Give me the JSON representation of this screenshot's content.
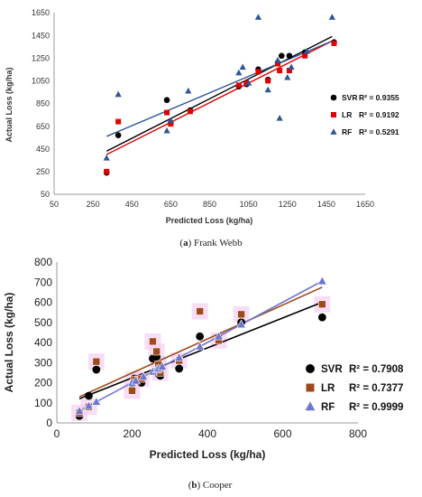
{
  "chart_data": [
    {
      "type": "scatter",
      "caption_letter": "a",
      "caption_text": "Frank Webb",
      "xlabel": "Predicted Loss (kg/ha)",
      "ylabel": "Actual Loss (kg/ha)",
      "xlim": [
        50,
        1650
      ],
      "ylim": [
        50,
        1650
      ],
      "xticks": [
        50,
        250,
        450,
        650,
        850,
        1050,
        1250,
        1450,
        1650
      ],
      "yticks": [
        50,
        250,
        450,
        650,
        850,
        1050,
        1250,
        1450,
        1650
      ],
      "grid": false,
      "legend_position": "right",
      "series": [
        {
          "name": "SVR",
          "r2": "R² = 0.9355",
          "marker": "circle",
          "color": "#000000",
          "points": [
            [
              320,
              240
            ],
            [
              380,
              570
            ],
            [
              630,
              880
            ],
            [
              650,
              680
            ],
            [
              750,
              790
            ],
            [
              1000,
              1000
            ],
            [
              1040,
              1020
            ],
            [
              1100,
              1150
            ],
            [
              1150,
              1060
            ],
            [
              1200,
              1210
            ],
            [
              1220,
              1270
            ],
            [
              1260,
              1270
            ],
            [
              1340,
              1300
            ],
            [
              1490,
              1390
            ]
          ],
          "trend": [
            [
              320,
              430
            ],
            [
              1480,
              1440
            ]
          ]
        },
        {
          "name": "LR",
          "r2": "R² = 0.9192",
          "marker": "square",
          "color": "#e00000",
          "points": [
            [
              320,
              250
            ],
            [
              380,
              690
            ],
            [
              630,
              770
            ],
            [
              650,
              670
            ],
            [
              750,
              780
            ],
            [
              1000,
              1010
            ],
            [
              1040,
              1030
            ],
            [
              1100,
              1130
            ],
            [
              1150,
              1050
            ],
            [
              1200,
              1200
            ],
            [
              1210,
              1140
            ],
            [
              1260,
              1140
            ],
            [
              1340,
              1270
            ],
            [
              1490,
              1380
            ]
          ],
          "trend": [
            [
              320,
              400
            ],
            [
              1480,
              1400
            ]
          ]
        },
        {
          "name": "RF",
          "r2": "R² = 0.5291",
          "marker": "triangle",
          "color": "#2e5597",
          "points": [
            [
              320,
              370
            ],
            [
              380,
              930
            ],
            [
              630,
              610
            ],
            [
              650,
              700
            ],
            [
              740,
              960
            ],
            [
              1000,
              1120
            ],
            [
              1020,
              1170
            ],
            [
              1050,
              1030
            ],
            [
              1100,
              1610
            ],
            [
              1150,
              970
            ],
            [
              1200,
              1230
            ],
            [
              1210,
              720
            ],
            [
              1250,
              1080
            ],
            [
              1270,
              1170
            ],
            [
              1350,
              1310
            ],
            [
              1480,
              1610
            ]
          ],
          "trend": [
            [
              320,
              560
            ],
            [
              1480,
              1400
            ]
          ]
        }
      ]
    },
    {
      "type": "scatter",
      "caption_letter": "b",
      "caption_text": "Cooper",
      "xlabel": "Predicted Loss (kg/ha)",
      "ylabel": "Actual Loss (kg/ha)",
      "xlim": [
        0,
        800
      ],
      "ylim": [
        0,
        800
      ],
      "xticks": [
        0,
        200,
        400,
        600,
        800
      ],
      "yticks": [
        0,
        100,
        200,
        300,
        400,
        500,
        600,
        700,
        800
      ],
      "grid": false,
      "legend_position": "bottom-right",
      "series": [
        {
          "name": "SVR",
          "r2": "R² = 0.7908",
          "marker": "circle",
          "color": "#000000",
          "points": [
            [
              60,
              35
            ],
            [
              60,
              45
            ],
            [
              85,
              135
            ],
            [
              105,
              265
            ],
            [
              200,
              165
            ],
            [
              205,
              220
            ],
            [
              225,
              200
            ],
            [
              255,
              320
            ],
            [
              265,
              330
            ],
            [
              270,
              245
            ],
            [
              275,
              235
            ],
            [
              325,
              270
            ],
            [
              380,
              430
            ],
            [
              430,
              420
            ],
            [
              490,
              500
            ],
            [
              705,
              525
            ]
          ],
          "trend": [
            [
              60,
              120
            ],
            [
              705,
              600
            ]
          ]
        },
        {
          "name": "LR",
          "r2": "R² = 0.7377",
          "marker": "square",
          "color": "#9e4a1a",
          "points": [
            [
              60,
              50
            ],
            [
              85,
              80
            ],
            [
              105,
              305
            ],
            [
              200,
              160
            ],
            [
              205,
              215
            ],
            [
              225,
              220
            ],
            [
              255,
              405
            ],
            [
              265,
              355
            ],
            [
              270,
              290
            ],
            [
              275,
              250
            ],
            [
              325,
              310
            ],
            [
              380,
              555
            ],
            [
              430,
              410
            ],
            [
              490,
              540
            ],
            [
              705,
              590
            ]
          ],
          "trend": [
            [
              60,
              130
            ],
            [
              705,
              675
            ]
          ]
        },
        {
          "name": "RF",
          "r2": "R² = 0.9999",
          "marker": "triangle",
          "color": "#6f75cf",
          "points": [
            [
              60,
              60
            ],
            [
              85,
              85
            ],
            [
              105,
              105
            ],
            [
              200,
              200
            ],
            [
              210,
              210
            ],
            [
              230,
              230
            ],
            [
              255,
              255
            ],
            [
              265,
              265
            ],
            [
              270,
              270
            ],
            [
              280,
              280
            ],
            [
              325,
              325
            ],
            [
              380,
              380
            ],
            [
              430,
              430
            ],
            [
              490,
              490
            ],
            [
              705,
              705
            ]
          ],
          "trend": [
            [
              60,
              60
            ],
            [
              705,
              705
            ]
          ]
        }
      ]
    }
  ]
}
